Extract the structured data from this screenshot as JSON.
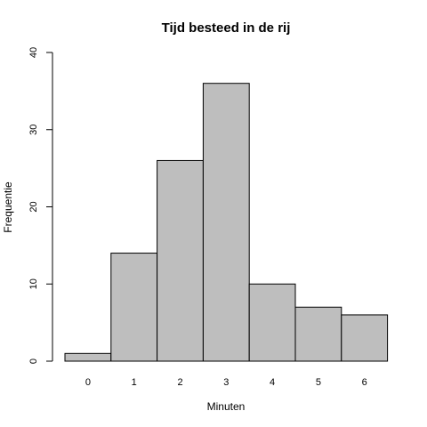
{
  "chart_data": {
    "type": "bar",
    "title": "Tijd besteed in de rij",
    "xlabel": "Minuten",
    "ylabel": "Frequentie",
    "categories": [
      "0",
      "1",
      "2",
      "3",
      "4",
      "5",
      "6"
    ],
    "values": [
      1,
      14,
      26,
      36,
      10,
      7,
      6
    ],
    "ylim": [
      0,
      40
    ],
    "y_ticks": [
      "0",
      "10",
      "20",
      "30",
      "40"
    ],
    "grid": false,
    "legend": "none",
    "colors": {
      "bar_fill": "#bebebe",
      "bar_stroke": "#000000",
      "axis": "#000000",
      "background": "#ffffff"
    }
  }
}
